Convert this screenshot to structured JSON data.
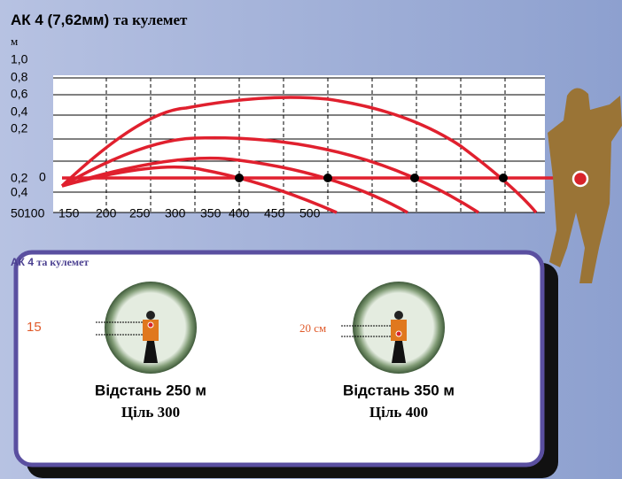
{
  "header": {
    "title_main": "АК 4 (7,62мм)",
    "title_suffix": "та кулемет"
  },
  "chart": {
    "y_unit": "м",
    "y_labels_up": [
      "1,0",
      "0,8",
      "0,6",
      "0,4",
      "0,2"
    ],
    "zero": "0",
    "y_labels_down": [
      "0,2",
      "0,4"
    ],
    "x_labels": [
      "50",
      "100",
      "150",
      "200",
      "250",
      "300",
      "350",
      "400",
      "450",
      "500"
    ]
  },
  "panel": {
    "title_main": "АК 4",
    "title_suffix": "та кулемет",
    "scopes": [
      {
        "offset": "15",
        "distance": "Відстань 250 м",
        "target": "Ціль 300"
      },
      {
        "offset": "20 см",
        "distance": "Відстань 350 м",
        "target": "Ціль 400"
      }
    ]
  }
}
